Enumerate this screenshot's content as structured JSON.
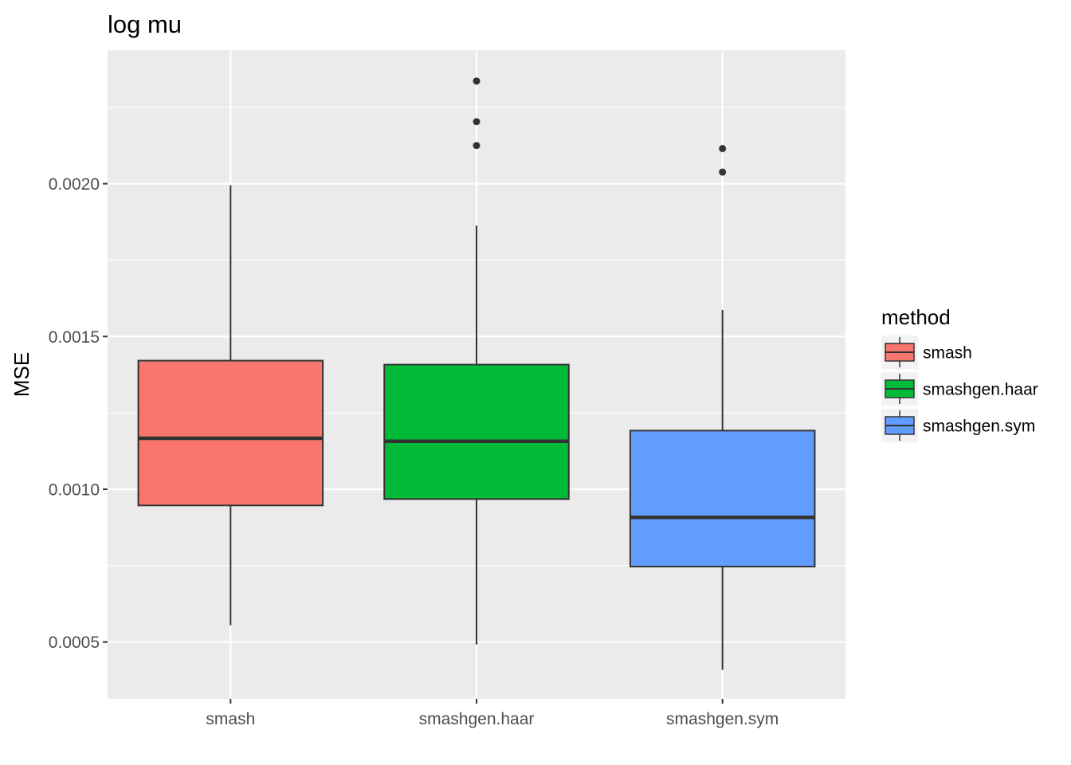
{
  "chart_data": {
    "type": "boxplot",
    "title": "log mu",
    "xlabel": "",
    "ylabel": "MSE",
    "ylim": [
      0.000314,
      0.002437
    ],
    "y_ticks": [
      0.0005,
      0.001,
      0.0015,
      0.002
    ],
    "y_tick_labels": [
      "0.0005",
      "0.0010",
      "0.0015",
      "0.0020"
    ],
    "categories": [
      "smash",
      "smashgen.haar",
      "smashgen.sym"
    ],
    "grid": true,
    "legend": {
      "title": "method",
      "position": "right",
      "entries": [
        "smash",
        "smashgen.haar",
        "smashgen.sym"
      ]
    },
    "colors": {
      "panel_background": "#ebebeb",
      "grid_line": "#ffffff",
      "box_outline": "#333333",
      "series": [
        "#f8766d",
        "#00ba38",
        "#619cff"
      ]
    },
    "boxes": [
      {
        "category": "smash",
        "whisker_low": 0.000555,
        "q1": 0.000947,
        "median": 0.001167,
        "q3": 0.001421,
        "whisker_high": 0.001995,
        "outliers": []
      },
      {
        "category": "smashgen.haar",
        "whisker_low": 0.000492,
        "q1": 0.000968,
        "median": 0.001157,
        "q3": 0.001408,
        "whisker_high": 0.001863,
        "outliers": [
          0.002125,
          0.002203,
          0.002336
        ]
      },
      {
        "category": "smashgen.sym",
        "whisker_low": 0.000409,
        "q1": 0.000747,
        "median": 0.000908,
        "q3": 0.001192,
        "whisker_high": 0.001587,
        "outliers": [
          0.002038,
          0.002115
        ]
      }
    ]
  }
}
